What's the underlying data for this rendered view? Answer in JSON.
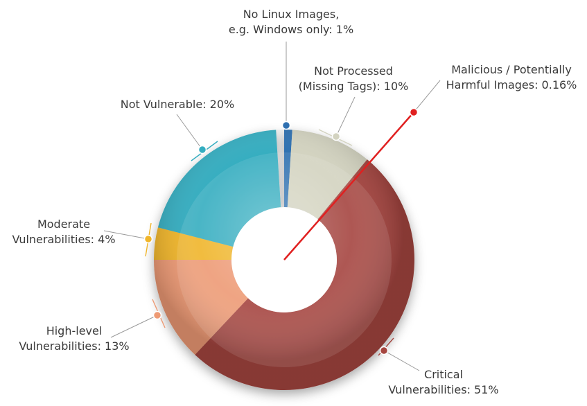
{
  "chart_data": {
    "type": "pie",
    "variant": "donut",
    "title": "",
    "slices": [
      {
        "label_lines": [
          "Critical",
          "Vulnerabilities: 51%"
        ],
        "value": 51,
        "color": "#a5453f"
      },
      {
        "label_lines": [
          "High-level",
          "Vulnerabilities: 13%"
        ],
        "value": 13,
        "color": "#ee9a74"
      },
      {
        "label_lines": [
          "Moderate",
          "Vulnerabilities: 4%"
        ],
        "value": 4,
        "color": "#f0b52a"
      },
      {
        "label_lines": [
          "Not Vulnerable: 20%"
        ],
        "value": 20,
        "color": "#34adc0"
      },
      {
        "label_lines": [
          "No Linux Images,",
          "e.g. Windows only: 1%"
        ],
        "value": 1,
        "color": "#2e6fb0"
      },
      {
        "label_lines": [
          "Not Processed",
          "(Missing Tags): 10%"
        ],
        "value": 10,
        "color": "#d3d3c0"
      },
      {
        "label_lines": [
          "Malicious / Potentially",
          "Harmful Images: 0.16%"
        ],
        "value": 0.16,
        "color": "#e02020"
      }
    ]
  }
}
